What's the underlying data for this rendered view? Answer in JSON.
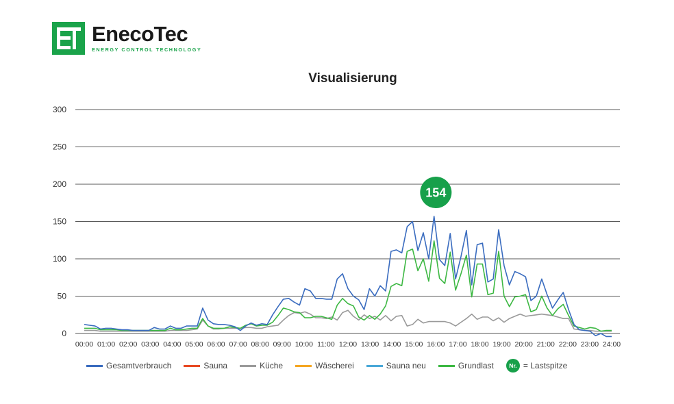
{
  "brand": {
    "name": "EnecoTec",
    "tagline": "ENERGY CONTROL TECHNOLOGY",
    "mark": "ET",
    "color": "#1aa34a"
  },
  "chart_data": {
    "type": "line",
    "title": "Visualisierung",
    "xlabel": "",
    "ylabel": "",
    "ylim": [
      0,
      300
    ],
    "yticks": [
      0,
      50,
      100,
      150,
      200,
      250,
      300
    ],
    "xticks": [
      "00:00",
      "01:00",
      "02:00",
      "03:00",
      "04:00",
      "05:00",
      "06:00",
      "07:00",
      "08:00",
      "09:00",
      "10:00",
      "11:00",
      "12:00",
      "13:00",
      "14:00",
      "15:00",
      "16:00",
      "17:00",
      "18:00",
      "19:00",
      "20:00",
      "21:00",
      "22:00",
      "23:00",
      "24:00"
    ],
    "x_interval_minutes": 15,
    "grid": true,
    "legend_position": "bottom",
    "peak": {
      "label": "154",
      "x_hours": 16.0,
      "color": "#17a04a"
    },
    "peak_legend": {
      "badge": "Nr.",
      "text": "= Lastspitze"
    },
    "series": [
      {
        "name": "Gesamtverbrauch",
        "color": "#3a6cbf",
        "values": [
          12,
          11,
          10,
          6,
          7,
          7,
          6,
          5,
          5,
          4,
          4,
          4,
          4,
          8,
          6,
          6,
          10,
          7,
          7,
          10,
          10,
          10,
          34,
          18,
          13,
          12,
          12,
          11,
          9,
          4,
          10,
          14,
          11,
          13,
          12,
          25,
          36,
          46,
          47,
          42,
          38,
          60,
          57,
          47,
          47,
          46,
          46,
          73,
          80,
          60,
          50,
          45,
          32,
          60,
          50,
          64,
          57,
          110,
          112,
          108,
          143,
          150,
          111,
          135,
          100,
          157,
          99,
          91,
          134,
          73,
          103,
          138,
          65,
          119,
          121,
          69,
          73,
          139,
          91,
          65,
          83,
          80,
          76,
          44,
          50,
          73,
          52,
          34,
          45,
          55,
          32,
          12,
          5,
          4,
          3,
          -3,
          0,
          -4,
          -4
        ]
      },
      {
        "name": "Sauna",
        "color": "#e84a24",
        "values": []
      },
      {
        "name": "Küche",
        "color": "#9a9a9a",
        "values": [
          4,
          4,
          4,
          3,
          3,
          3,
          3,
          3,
          3,
          3,
          3,
          3,
          3,
          3,
          3,
          3,
          4,
          4,
          4,
          4,
          5,
          6,
          18,
          10,
          6,
          6,
          7,
          7,
          7,
          7,
          8,
          8,
          7,
          7,
          9,
          10,
          11,
          18,
          24,
          28,
          27,
          29,
          26,
          21,
          21,
          20,
          22,
          18,
          28,
          31,
          23,
          18,
          25,
          20,
          23,
          18,
          24,
          17,
          23,
          24,
          10,
          12,
          19,
          14,
          16,
          16,
          16,
          16,
          14,
          10,
          15,
          20,
          26,
          19,
          22,
          22,
          17,
          21,
          15,
          20,
          23,
          26,
          23,
          24,
          25,
          26,
          25,
          24,
          22,
          20,
          20,
          6,
          5,
          4,
          4,
          3,
          3,
          3,
          3
        ]
      },
      {
        "name": "Wäscherei",
        "color": "#f5a623",
        "values": []
      },
      {
        "name": "Sauna neu",
        "color": "#4aa8d8",
        "values": []
      },
      {
        "name": "Grundlast",
        "color": "#3db843",
        "values": [
          7,
          7,
          7,
          5,
          5,
          5,
          5,
          4,
          4,
          4,
          4,
          4,
          4,
          4,
          4,
          4,
          7,
          5,
          5,
          6,
          7,
          7,
          20,
          10,
          7,
          7,
          7,
          9,
          8,
          7,
          11,
          13,
          10,
          11,
          11,
          15,
          24,
          34,
          32,
          29,
          28,
          21,
          21,
          23,
          23,
          21,
          19,
          38,
          47,
          40,
          37,
          22,
          18,
          24,
          19,
          26,
          37,
          63,
          67,
          64,
          110,
          113,
          84,
          100,
          70,
          124,
          74,
          67,
          109,
          58,
          80,
          105,
          49,
          93,
          93,
          52,
          54,
          110,
          50,
          36,
          49,
          50,
          52,
          29,
          32,
          50,
          34,
          24,
          33,
          39,
          24,
          10,
          8,
          6,
          8,
          7,
          3,
          4,
          4
        ]
      }
    ]
  }
}
